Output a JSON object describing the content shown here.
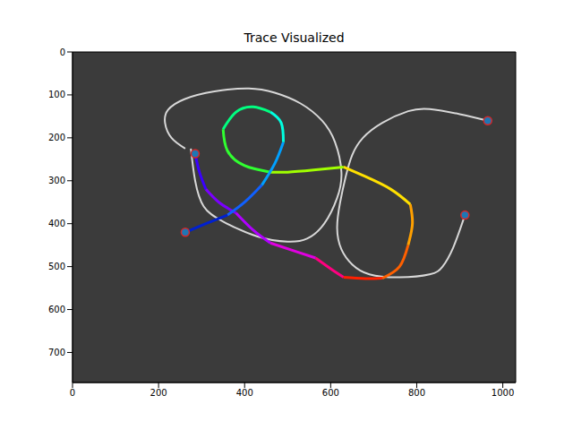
{
  "chart_data": {
    "type": "line",
    "title": "Trace Visualized",
    "xlim": [
      0,
      1030
    ],
    "ylim": [
      770,
      0
    ],
    "xticks": [
      0,
      200,
      400,
      600,
      800,
      1000
    ],
    "yticks": [
      0,
      100,
      200,
      300,
      400,
      500,
      600,
      700
    ],
    "grid": false,
    "series": [
      {
        "type": "line",
        "color": "#d8d8d8",
        "x": [
          275,
          285,
          305,
          350,
          430,
          500,
          545,
          585,
          615,
          625,
          610,
          580,
          530,
          470,
          410,
          330,
          260,
          222,
          215,
          230,
          262
        ],
        "values": [
          225,
          300,
          360,
          395,
          430,
          442,
          435,
          400,
          340,
          280,
          210,
          160,
          120,
          95,
          85,
          92,
          110,
          135,
          165,
          200,
          225
        ]
      },
      {
        "type": "line",
        "color": "#d8d8d8",
        "x": [
          965,
          900,
          830,
          780,
          720,
          675,
          650,
          635,
          622,
          615,
          625,
          650,
          690,
          760,
          830,
          860,
          885,
          912
        ],
        "values": [
          160,
          145,
          133,
          138,
          165,
          200,
          240,
          290,
          350,
          410,
          460,
          495,
          518,
          525,
          518,
          500,
          455,
          380
        ]
      },
      {
        "type": "line",
        "color": "#3a00ff",
        "x": [
          285,
          295,
          310
        ],
        "values": [
          237,
          280,
          320
        ]
      },
      {
        "type": "line",
        "color": "#7a00ff",
        "x": [
          310,
          340,
          380
        ],
        "values": [
          320,
          350,
          375
        ]
      },
      {
        "type": "line",
        "color": "#b000ff",
        "x": [
          380,
          420,
          460
        ],
        "values": [
          375,
          415,
          445
        ]
      },
      {
        "type": "line",
        "color": "#e000e0",
        "x": [
          460,
          520,
          565
        ],
        "values": [
          445,
          465,
          480
        ]
      },
      {
        "type": "line",
        "color": "#ff0080",
        "x": [
          565,
          600,
          630
        ],
        "values": [
          480,
          505,
          525
        ]
      },
      {
        "type": "line",
        "color": "#ff2000",
        "x": [
          630,
          680,
          720
        ],
        "values": [
          525,
          528,
          527
        ]
      },
      {
        "type": "line",
        "color": "#ff6000",
        "x": [
          720,
          760,
          780
        ],
        "values": [
          527,
          500,
          450
        ]
      },
      {
        "type": "line",
        "color": "#ffa000",
        "x": [
          780,
          790,
          785
        ],
        "values": [
          450,
          400,
          355
        ]
      },
      {
        "type": "line",
        "color": "#ffe000",
        "x": [
          785,
          740,
          680,
          630
        ],
        "values": [
          355,
          320,
          290,
          268
        ]
      },
      {
        "type": "line",
        "color": "#a0ff00",
        "x": [
          630,
          560,
          500,
          460
        ],
        "values": [
          268,
          275,
          280,
          280
        ]
      },
      {
        "type": "line",
        "color": "#30ff30",
        "x": [
          460,
          400,
          360,
          350
        ],
        "values": [
          280,
          265,
          230,
          180
        ]
      },
      {
        "type": "line",
        "color": "#00ff80",
        "x": [
          350,
          380,
          420,
          460
        ],
        "values": [
          180,
          140,
          128,
          140
        ]
      },
      {
        "type": "line",
        "color": "#00ffe0",
        "x": [
          460,
          485,
          490
        ],
        "values": [
          140,
          165,
          210
        ]
      },
      {
        "type": "line",
        "color": "#00a0ff",
        "x": [
          490,
          470,
          440
        ],
        "values": [
          210,
          260,
          310
        ]
      },
      {
        "type": "line",
        "color": "#1060ff",
        "x": [
          440,
          400,
          360
        ],
        "values": [
          310,
          350,
          380
        ]
      },
      {
        "type": "line",
        "color": "#0020d0",
        "x": [
          360,
          310,
          262
        ],
        "values": [
          380,
          400,
          420
        ]
      },
      {
        "type": "scatter",
        "color": "#1f77b4",
        "marker": "o",
        "x": [
          285,
          262,
          965,
          912
        ],
        "values": [
          237,
          420,
          160,
          380
        ]
      }
    ]
  }
}
